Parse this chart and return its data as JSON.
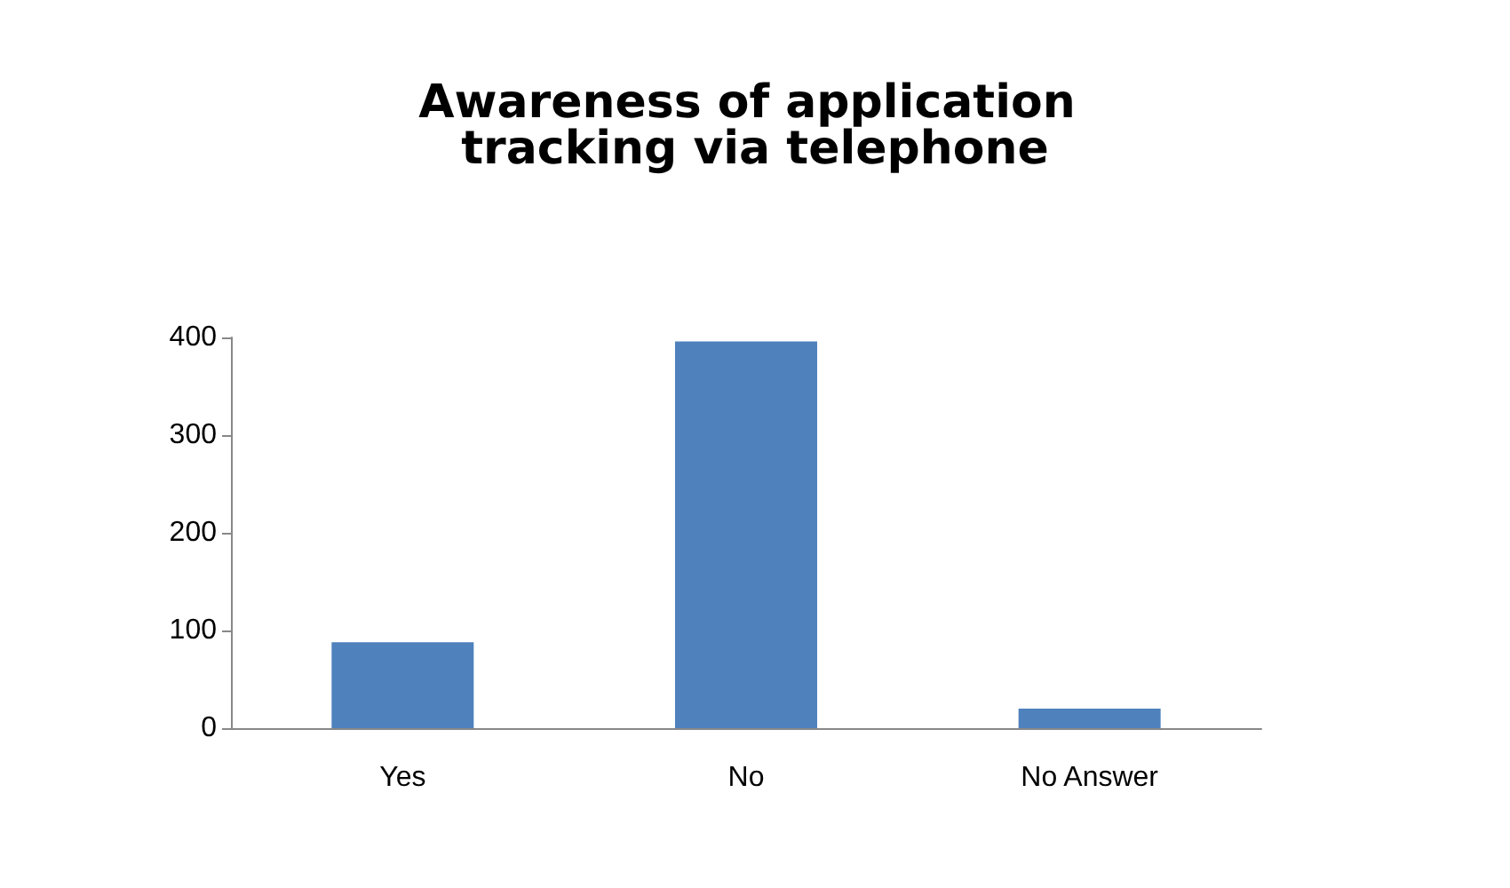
{
  "chart_data": {
    "type": "bar",
    "title": "Awareness of application tracking via telephone",
    "categories": [
      "Yes",
      "No",
      "No Answer"
    ],
    "values": [
      88,
      396,
      20
    ],
    "color": "#4f81bd",
    "ylim": [
      0,
      400
    ],
    "yticks": [
      0,
      100,
      200,
      300,
      400
    ],
    "grid": false
  }
}
